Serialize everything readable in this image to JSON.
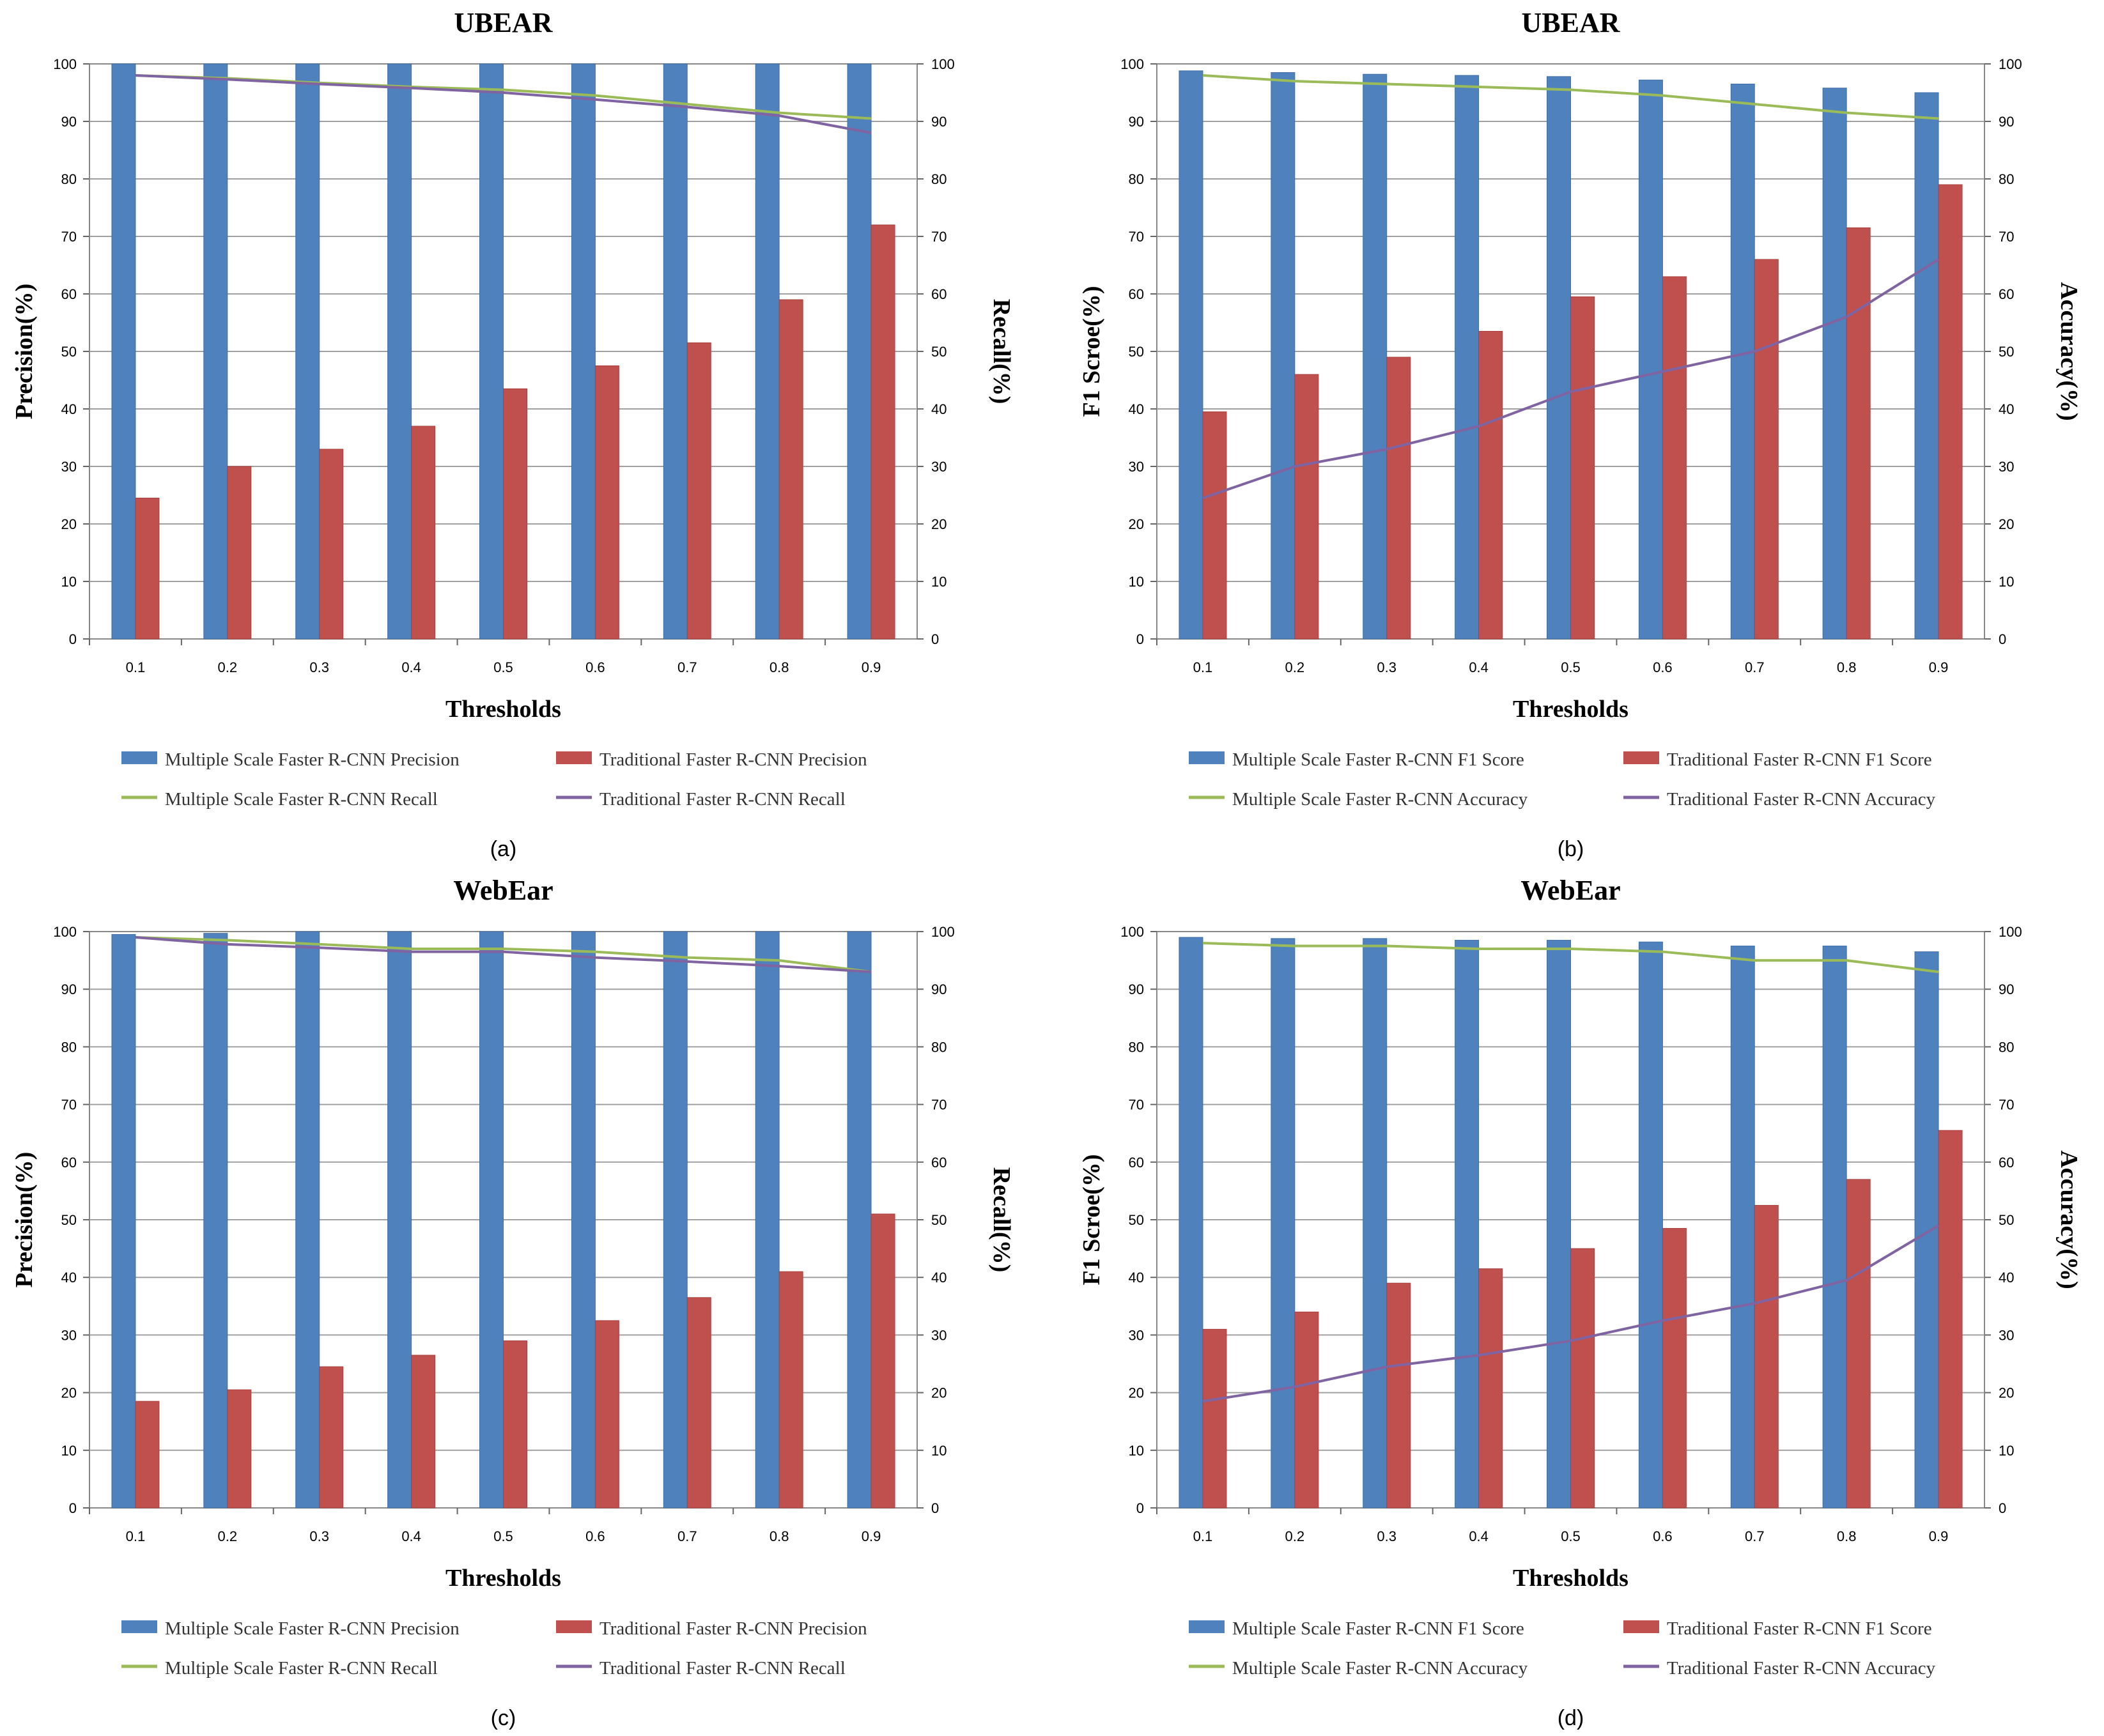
{
  "colors": {
    "multi_bar": "#4f81bd",
    "trad_bar": "#c0504d",
    "multi_line": "#9bbb59",
    "trad_line": "#8064a2",
    "grid": "#a0a0a0"
  },
  "chart_data": [
    {
      "type": "bar",
      "panel": "(a)",
      "title": "UBEAR",
      "xlabel": "Thresholds",
      "ylabel": "Precision(%)",
      "y2label": "Recall(%)",
      "ylim": [
        0,
        100
      ],
      "y2lim": [
        0,
        100
      ],
      "yticks": [
        "0",
        "10",
        "20",
        "30",
        "40",
        "50",
        "60",
        "70",
        "80",
        "90",
        "100"
      ],
      "categories": [
        "0.1",
        "0.2",
        "0.3",
        "0.4",
        "0.5",
        "0.6",
        "0.7",
        "0.8",
        "0.9"
      ],
      "series": [
        {
          "name": "Multiple Scale Faster R-CNN Precision",
          "kind": "bar",
          "values": [
            100,
            100,
            100,
            100,
            100,
            100,
            100,
            100,
            100
          ]
        },
        {
          "name": "Traditional Faster R-CNN Precision",
          "kind": "bar",
          "values": [
            24.5,
            30,
            33,
            37,
            43.5,
            47.5,
            51.5,
            59,
            72
          ]
        },
        {
          "name": "Multiple Scale Faster R-CNN Recall",
          "kind": "line",
          "axis": "right",
          "values": [
            98,
            97.5,
            96.7,
            96,
            95.5,
            94.5,
            93,
            91.5,
            90.5
          ]
        },
        {
          "name": "Traditional Faster R-CNN Recall",
          "kind": "line",
          "axis": "right",
          "values": [
            98,
            97.3,
            96.5,
            95.8,
            95,
            93.8,
            92.5,
            91,
            88
          ]
        }
      ]
    },
    {
      "type": "bar",
      "panel": "(b)",
      "title": "UBEAR",
      "xlabel": "Thresholds",
      "ylabel": "F1 Scroe(%)",
      "y2label": "Accuracy(%)",
      "ylim": [
        0,
        100
      ],
      "y2lim": [
        0,
        100
      ],
      "yticks": [
        "0",
        "10",
        "20",
        "30",
        "40",
        "50",
        "60",
        "70",
        "80",
        "90",
        "100"
      ],
      "categories": [
        "0.1",
        "0.2",
        "0.3",
        "0.4",
        "0.5",
        "0.6",
        "0.7",
        "0.8",
        "0.9"
      ],
      "series": [
        {
          "name": "Multiple Scale Faster R-CNN F1 Score",
          "kind": "bar",
          "values": [
            98.8,
            98.5,
            98.2,
            98,
            97.8,
            97.2,
            96.5,
            95.8,
            95
          ]
        },
        {
          "name": "Traditional Faster R-CNN F1 Score",
          "kind": "bar",
          "values": [
            39.5,
            46,
            49,
            53.5,
            59.5,
            63,
            66,
            71.5,
            79
          ]
        },
        {
          "name": "Multiple Scale Faster R-CNN Accuracy",
          "kind": "line",
          "axis": "right",
          "values": [
            98,
            97,
            96.5,
            96,
            95.5,
            94.5,
            93,
            91.5,
            90.5
          ]
        },
        {
          "name": "Traditional Faster R-CNN Accuracy",
          "kind": "line",
          "axis": "right",
          "values": [
            24.5,
            30,
            33,
            37,
            43,
            46.5,
            50,
            56,
            66
          ]
        }
      ]
    },
    {
      "type": "bar",
      "panel": "(c)",
      "title": "WebEar",
      "xlabel": "Thresholds",
      "ylabel": "Precision(%)",
      "y2label": "Recall(%)",
      "ylim": [
        0,
        100
      ],
      "y2lim": [
        0,
        100
      ],
      "yticks": [
        "0",
        "10",
        "20",
        "30",
        "40",
        "50",
        "60",
        "70",
        "80",
        "90",
        "100"
      ],
      "categories": [
        "0.1",
        "0.2",
        "0.3",
        "0.4",
        "0.5",
        "0.6",
        "0.7",
        "0.8",
        "0.9"
      ],
      "series": [
        {
          "name": "Multiple Scale Faster R-CNN Precision",
          "kind": "bar",
          "values": [
            99.5,
            99.7,
            100,
            100,
            100,
            100,
            100,
            100,
            100
          ]
        },
        {
          "name": "Traditional Faster R-CNN Precision",
          "kind": "bar",
          "values": [
            18.5,
            20.5,
            24.5,
            26.5,
            29,
            32.5,
            36.5,
            41,
            51
          ]
        },
        {
          "name": "Multiple Scale Faster R-CNN Recall",
          "kind": "line",
          "axis": "right",
          "values": [
            99,
            98.5,
            97.8,
            97,
            97,
            96.5,
            95.5,
            95,
            93
          ]
        },
        {
          "name": "Traditional Faster R-CNN Recall",
          "kind": "line",
          "axis": "right",
          "values": [
            99,
            97.8,
            97.2,
            96.5,
            96.5,
            95.5,
            94.8,
            94,
            93
          ]
        }
      ]
    },
    {
      "type": "bar",
      "panel": "(d)",
      "title": "WebEar",
      "xlabel": "Thresholds",
      "ylabel": "F1 Scroe(%)",
      "y2label": "Accuracy(%)",
      "ylim": [
        0,
        100
      ],
      "y2lim": [
        0,
        100
      ],
      "yticks": [
        "0",
        "10",
        "20",
        "30",
        "40",
        "50",
        "60",
        "70",
        "80",
        "90",
        "100"
      ],
      "categories": [
        "0.1",
        "0.2",
        "0.3",
        "0.4",
        "0.5",
        "0.6",
        "0.7",
        "0.8",
        "0.9"
      ],
      "series": [
        {
          "name": "Multiple Scale Faster R-CNN F1 Score",
          "kind": "bar",
          "values": [
            99,
            98.8,
            98.8,
            98.5,
            98.5,
            98.2,
            97.5,
            97.5,
            96.5
          ]
        },
        {
          "name": "Traditional Faster R-CNN F1 Score",
          "kind": "bar",
          "values": [
            31,
            34,
            39,
            41.5,
            45,
            48.5,
            52.5,
            57,
            65.5
          ]
        },
        {
          "name": "Multiple Scale Faster R-CNN Accuracy",
          "kind": "line",
          "axis": "right",
          "values": [
            98,
            97.5,
            97.5,
            97,
            97,
            96.5,
            95,
            95,
            93
          ]
        },
        {
          "name": "Traditional Faster R-CNN Accuracy",
          "kind": "line",
          "axis": "right",
          "values": [
            18.5,
            21,
            24.5,
            26.5,
            29,
            32.5,
            35.5,
            39.5,
            49
          ]
        }
      ]
    }
  ]
}
